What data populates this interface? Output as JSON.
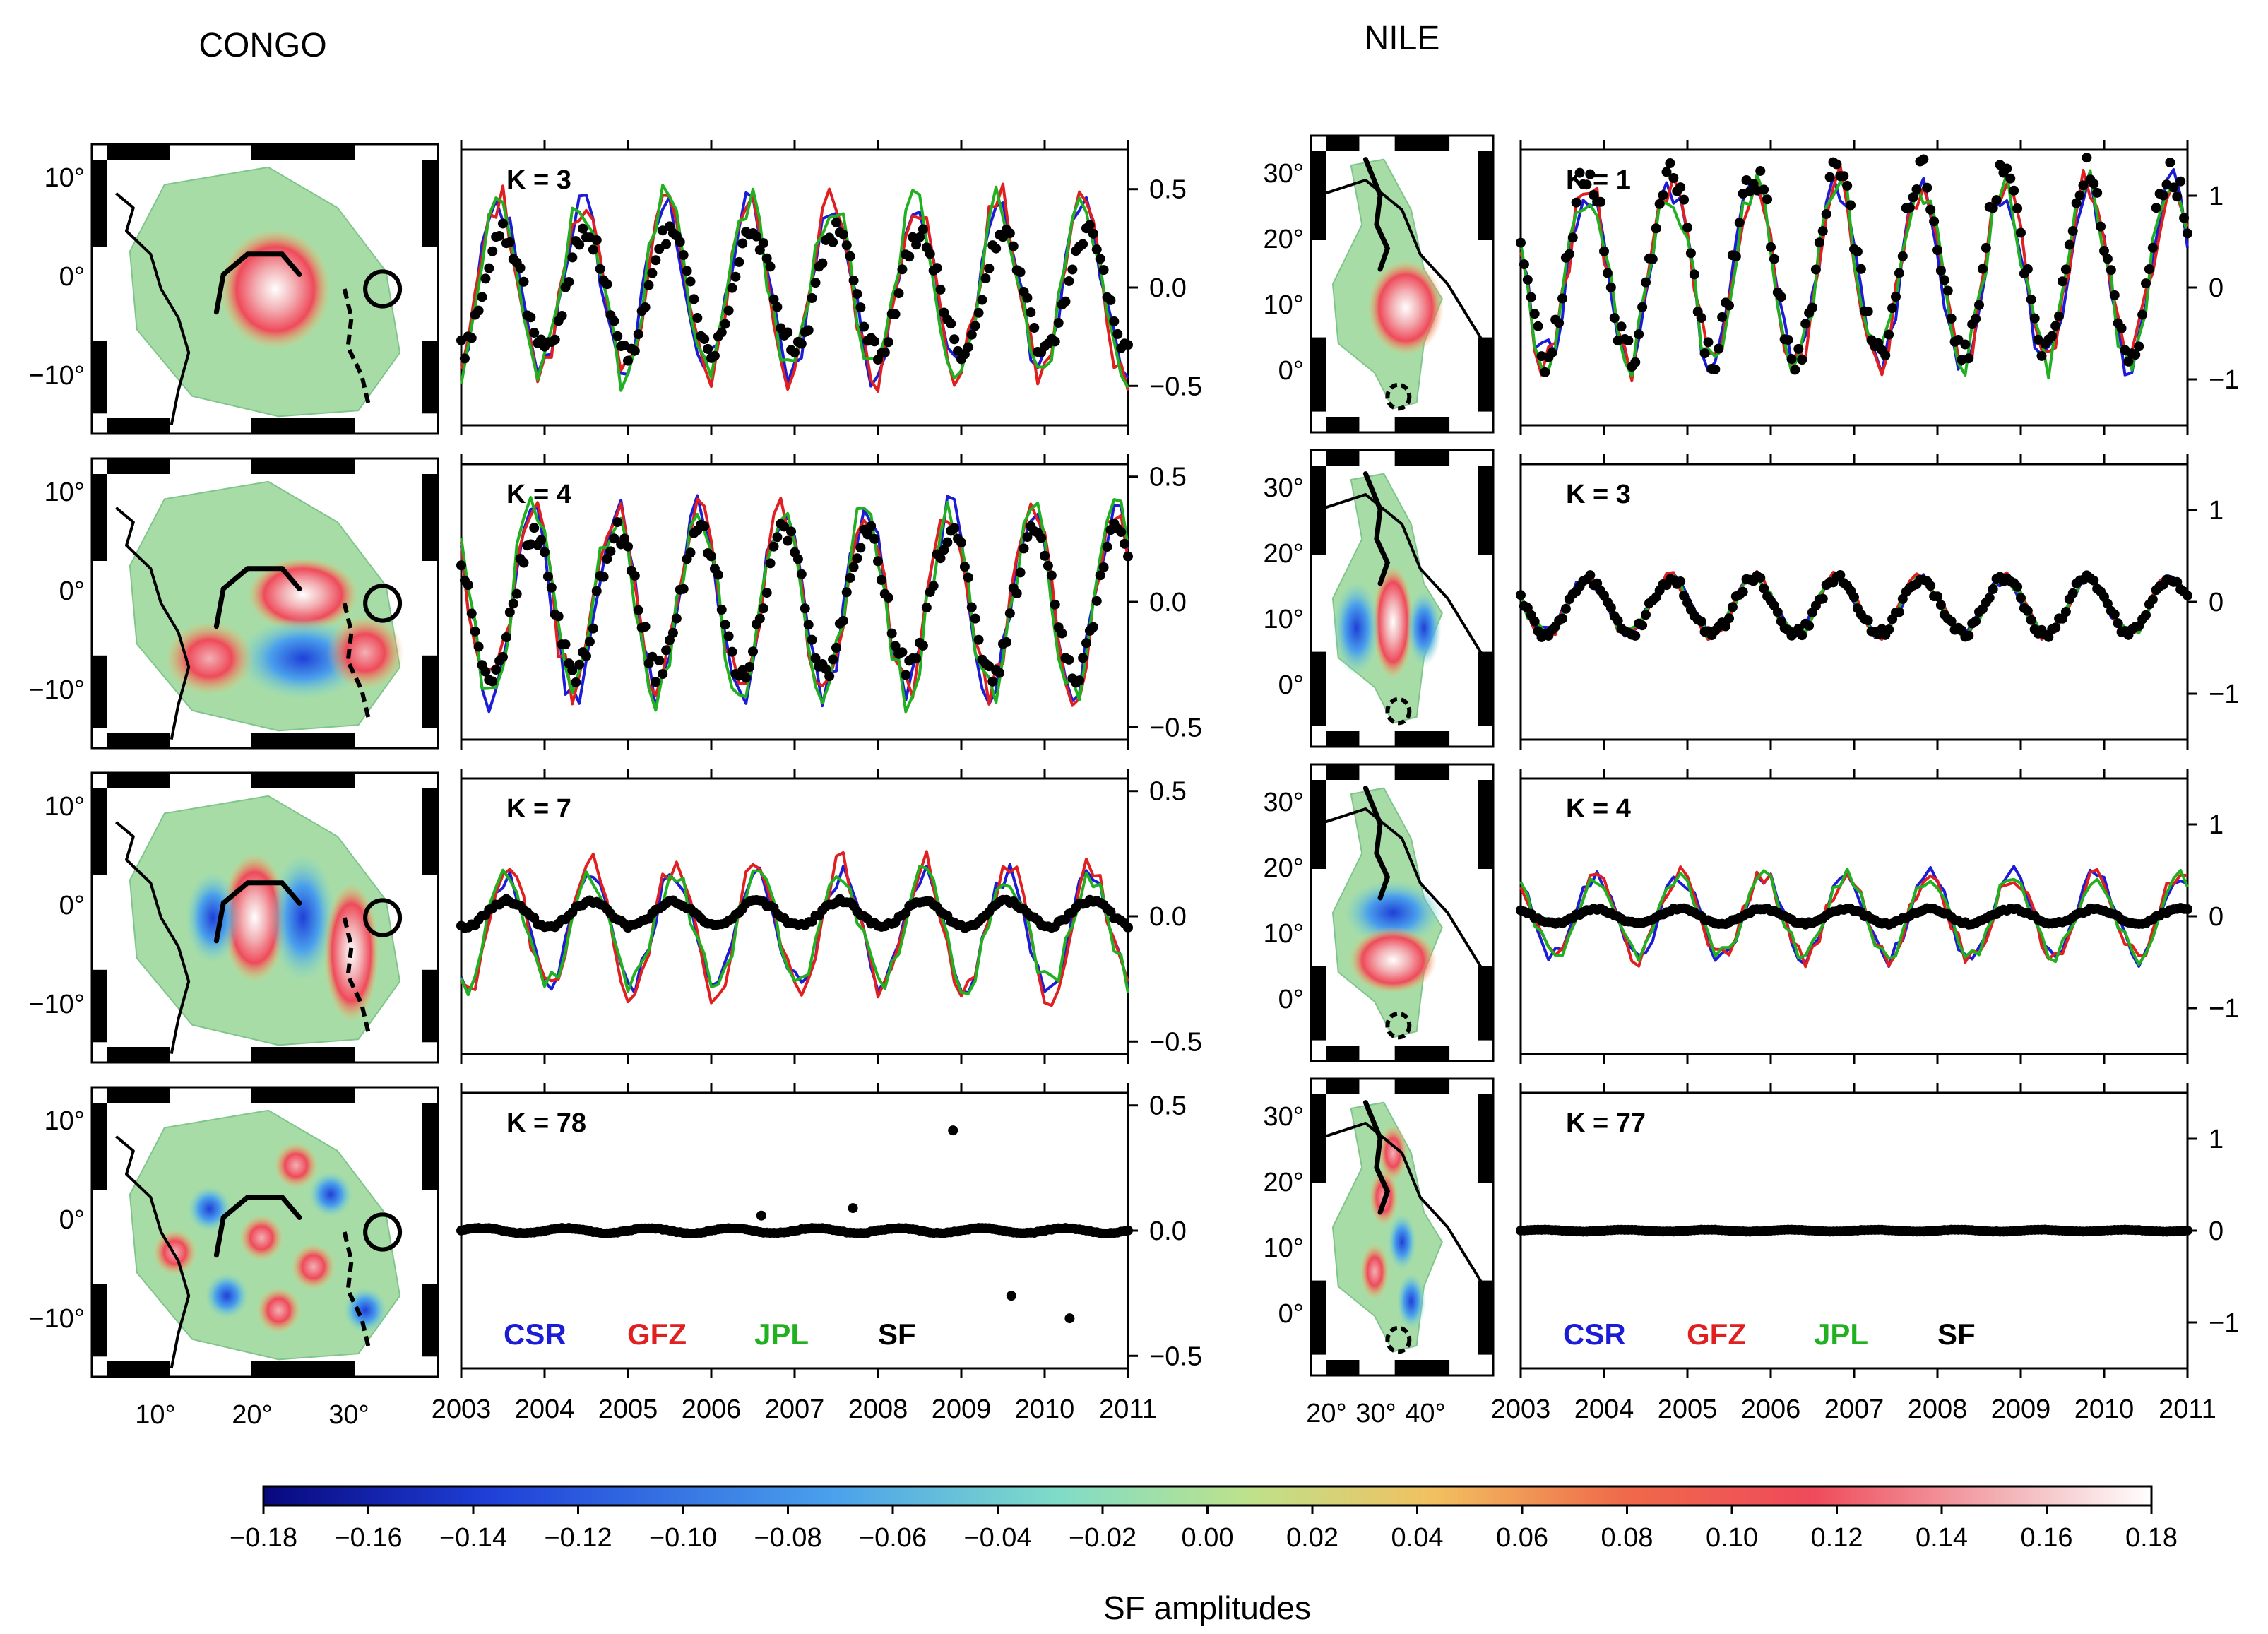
{
  "figure": {
    "colorbar": {
      "title": "SF amplitudes",
      "ticks": [
        "−0.18",
        "−0.16",
        "−0.14",
        "−0.12",
        "−0.10",
        "−0.08",
        "−0.06",
        "−0.04",
        "−0.02",
        "0.00",
        "0.02",
        "0.04",
        "0.06",
        "0.08",
        "0.10",
        "0.12",
        "0.14",
        "0.16",
        "0.18"
      ],
      "range": [
        -0.18,
        0.18
      ],
      "colors": [
        "#08087e",
        "#1f40d8",
        "#4aa0ec",
        "#7fdcc8",
        "#bde28c",
        "#f2c060",
        "#ef6a4a",
        "#ef4a5a",
        "#f2b0b4",
        "#ffffff"
      ]
    },
    "legend": [
      {
        "name": "CSR",
        "color": "#1c1cd6"
      },
      {
        "name": "GFZ",
        "color": "#e02020"
      },
      {
        "name": "JPL",
        "color": "#20b020"
      },
      {
        "name": "SF",
        "color": "#000000"
      }
    ]
  },
  "regions": [
    {
      "name": "CONGO",
      "map_lat_ticks": [
        "10°",
        "0°",
        "−10°"
      ],
      "map_lon_ticks": [
        "10°",
        "20°",
        "30°"
      ],
      "ts_y_ticks": [
        "0.5",
        "0.0",
        "−0.5"
      ],
      "ts_x_ticks": [
        "2003",
        "2004",
        "2005",
        "2006",
        "2007",
        "2008",
        "2009",
        "2010",
        "2011"
      ],
      "panels": [
        {
          "k_label": "K = 3"
        },
        {
          "k_label": "K = 4"
        },
        {
          "k_label": "K = 7"
        },
        {
          "k_label": "K = 78"
        }
      ]
    },
    {
      "name": "NILE",
      "map_lat_ticks": [
        "30°",
        "20°",
        "10°",
        "0°"
      ],
      "map_lon_ticks": [
        "20°",
        "30°",
        "40°"
      ],
      "ts_y_ticks": [
        "1",
        "0",
        "−1"
      ],
      "ts_x_ticks": [
        "2003",
        "2004",
        "2005",
        "2006",
        "2007",
        "2008",
        "2009",
        "2010",
        "2011"
      ],
      "panels": [
        {
          "k_label": "K = 1"
        },
        {
          "k_label": "K = 3"
        },
        {
          "k_label": "K = 4"
        },
        {
          "k_label": "K = 77"
        }
      ]
    }
  ],
  "chart_data": [
    {
      "type": "line",
      "title": "CONGO K = 3",
      "xlabel": "",
      "ylabel": "",
      "xlim": [
        2003,
        2011
      ],
      "ylim": [
        -0.7,
        0.7
      ],
      "series": [
        {
          "name": "CSR",
          "amp": 0.42,
          "phase": 0.2,
          "mean": 0.0
        },
        {
          "name": "GFZ",
          "amp": 0.45,
          "phase": 0.2,
          "mean": 0.0
        },
        {
          "name": "JPL",
          "amp": 0.44,
          "phase": 0.2,
          "mean": 0.0
        },
        {
          "name": "SF",
          "amp": 0.3,
          "phase": 0.25,
          "mean": -0.02
        }
      ]
    },
    {
      "type": "line",
      "title": "CONGO K = 4",
      "xlabel": "",
      "ylabel": "",
      "xlim": [
        2003,
        2011
      ],
      "ylim": [
        -0.55,
        0.55
      ],
      "series": [
        {
          "name": "CSR",
          "amp": 0.36,
          "phase": 0.6,
          "mean": 0.0
        },
        {
          "name": "GFZ",
          "amp": 0.35,
          "phase": 0.6,
          "mean": 0.0
        },
        {
          "name": "JPL",
          "amp": 0.37,
          "phase": 0.6,
          "mean": 0.0
        },
        {
          "name": "SF",
          "amp": 0.28,
          "phase": 0.62,
          "mean": 0.0
        }
      ]
    },
    {
      "type": "line",
      "title": "CONGO K = 7",
      "xlabel": "",
      "ylabel": "",
      "xlim": [
        2003,
        2011
      ],
      "ylim": [
        -0.55,
        0.55
      ],
      "series": [
        {
          "name": "CSR",
          "amp": 0.22,
          "phase": 0.3,
          "mean": -0.05
        },
        {
          "name": "GFZ",
          "amp": 0.26,
          "phase": 0.3,
          "mean": -0.05
        },
        {
          "name": "JPL",
          "amp": 0.22,
          "phase": 0.3,
          "mean": -0.05
        },
        {
          "name": "SF",
          "amp": 0.05,
          "phase": 0.3,
          "mean": 0.01
        }
      ]
    },
    {
      "type": "line",
      "title": "CONGO K = 78",
      "xlabel": "",
      "ylabel": "",
      "xlim": [
        2003,
        2011
      ],
      "ylim": [
        -0.55,
        0.55
      ],
      "series": [
        {
          "name": "CSR",
          "amp": 0.005,
          "phase": 0.0,
          "mean": 0.0
        },
        {
          "name": "GFZ",
          "amp": 0.005,
          "phase": 0.0,
          "mean": 0.0
        },
        {
          "name": "JPL",
          "amp": 0.005,
          "phase": 0.0,
          "mean": 0.0
        },
        {
          "name": "SF",
          "amp": 0.01,
          "phase": 0.0,
          "mean": 0.0
        }
      ],
      "outliers": [
        {
          "x": 2006.6,
          "y": 0.06
        },
        {
          "x": 2007.7,
          "y": 0.09
        },
        {
          "x": 2008.9,
          "y": 0.4
        },
        {
          "x": 2009.6,
          "y": -0.26
        },
        {
          "x": 2010.3,
          "y": -0.35
        }
      ]
    },
    {
      "type": "line",
      "title": "NILE K = 1",
      "xlabel": "",
      "ylabel": "",
      "xlim": [
        2003,
        2011
      ],
      "ylim": [
        -1.5,
        1.5
      ],
      "series": [
        {
          "name": "CSR",
          "amp": 0.95,
          "phase": 0.55,
          "mean": 0.15
        },
        {
          "name": "GFZ",
          "amp": 0.98,
          "phase": 0.55,
          "mean": 0.15
        },
        {
          "name": "JPL",
          "amp": 0.95,
          "phase": 0.55,
          "mean": 0.15
        },
        {
          "name": "SF",
          "amp": 1.0,
          "phase": 0.55,
          "mean": 0.25
        }
      ]
    },
    {
      "type": "line",
      "title": "NILE K = 3",
      "xlabel": "",
      "ylabel": "",
      "xlim": [
        2003,
        2011
      ],
      "ylim": [
        -1.5,
        1.5
      ],
      "series": [
        {
          "name": "CSR",
          "amp": 0.3,
          "phase": 0.55,
          "mean": -0.05
        },
        {
          "name": "GFZ",
          "amp": 0.32,
          "phase": 0.55,
          "mean": -0.05
        },
        {
          "name": "JPL",
          "amp": 0.3,
          "phase": 0.55,
          "mean": -0.05
        },
        {
          "name": "SF",
          "amp": 0.3,
          "phase": 0.55,
          "mean": -0.05
        }
      ]
    },
    {
      "type": "line",
      "title": "NILE K = 4",
      "xlabel": "",
      "ylabel": "",
      "xlim": [
        2003,
        2011
      ],
      "ylim": [
        -1.5,
        1.5
      ],
      "series": [
        {
          "name": "CSR",
          "amp": 0.45,
          "phase": 0.65,
          "mean": 0.0
        },
        {
          "name": "GFZ",
          "amp": 0.45,
          "phase": 0.65,
          "mean": 0.0
        },
        {
          "name": "JPL",
          "amp": 0.43,
          "phase": 0.65,
          "mean": 0.0
        },
        {
          "name": "SF",
          "amp": 0.08,
          "phase": 0.65,
          "mean": 0.0
        }
      ]
    },
    {
      "type": "line",
      "title": "NILE K = 77",
      "xlabel": "",
      "ylabel": "",
      "xlim": [
        2003,
        2011
      ],
      "ylim": [
        -1.5,
        1.5
      ],
      "series": [
        {
          "name": "CSR",
          "amp": 0.0,
          "phase": 0.0,
          "mean": 0.0
        },
        {
          "name": "GFZ",
          "amp": 0.0,
          "phase": 0.0,
          "mean": 0.0
        },
        {
          "name": "JPL",
          "amp": 0.0,
          "phase": 0.0,
          "mean": 0.0
        },
        {
          "name": "SF",
          "amp": 0.01,
          "phase": 0.0,
          "mean": 0.0
        }
      ]
    }
  ]
}
